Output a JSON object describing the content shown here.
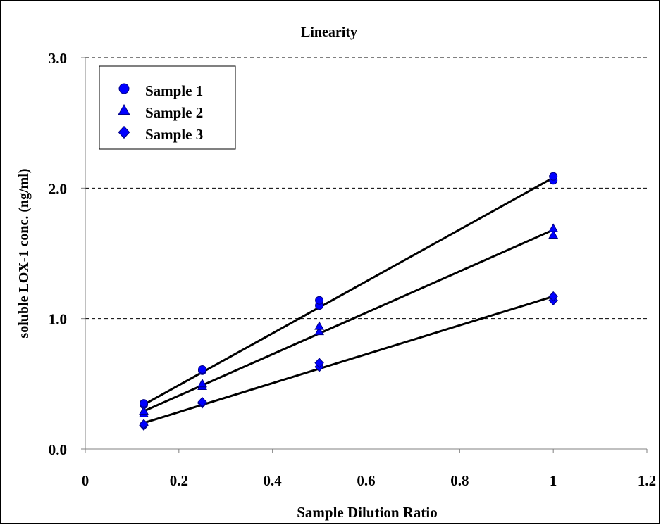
{
  "chart_data": {
    "type": "scatter",
    "title": "Linearity",
    "xlabel": "Sample Dilution Ratio",
    "ylabel": "soluble LOX-1 conc. (ng/ml)",
    "xlim": [
      0,
      1.2
    ],
    "ylim": [
      0,
      3.0
    ],
    "x_ticks": [
      "0",
      "0.2",
      "0.4",
      "0.6",
      "0.8",
      "1",
      "1.2"
    ],
    "y_ticks": [
      "0.0",
      "1.0",
      "2.0",
      "3.0"
    ],
    "grid": "horizontal-dashed",
    "legend_position": "top-left",
    "series": [
      {
        "name": "Sample 1",
        "marker": "circle",
        "color": "#0000ff",
        "points": [
          [
            0.125,
            0.34
          ],
          [
            0.125,
            0.35
          ],
          [
            0.25,
            0.6
          ],
          [
            0.25,
            0.61
          ],
          [
            0.5,
            1.1
          ],
          [
            0.5,
            1.14
          ],
          [
            1.0,
            2.06
          ],
          [
            1.0,
            2.09
          ]
        ],
        "fit": [
          [
            0.125,
            0.34
          ],
          [
            1.0,
            2.08
          ]
        ]
      },
      {
        "name": "Sample 2",
        "marker": "triangle",
        "color": "#0000ff",
        "points": [
          [
            0.125,
            0.27
          ],
          [
            0.125,
            0.29
          ],
          [
            0.25,
            0.48
          ],
          [
            0.25,
            0.5
          ],
          [
            0.5,
            0.9
          ],
          [
            0.5,
            0.94
          ],
          [
            1.0,
            1.64
          ],
          [
            1.0,
            1.69
          ]
        ],
        "fit": [
          [
            0.125,
            0.29
          ],
          [
            1.0,
            1.68
          ]
        ]
      },
      {
        "name": "Sample 3",
        "marker": "diamond",
        "color": "#0000ff",
        "points": [
          [
            0.125,
            0.18
          ],
          [
            0.125,
            0.19
          ],
          [
            0.25,
            0.35
          ],
          [
            0.25,
            0.36
          ],
          [
            0.5,
            0.63
          ],
          [
            0.5,
            0.66
          ],
          [
            1.0,
            1.14
          ],
          [
            1.0,
            1.17
          ]
        ],
        "fit": [
          [
            0.125,
            0.2
          ],
          [
            1.0,
            1.17
          ]
        ]
      }
    ]
  }
}
